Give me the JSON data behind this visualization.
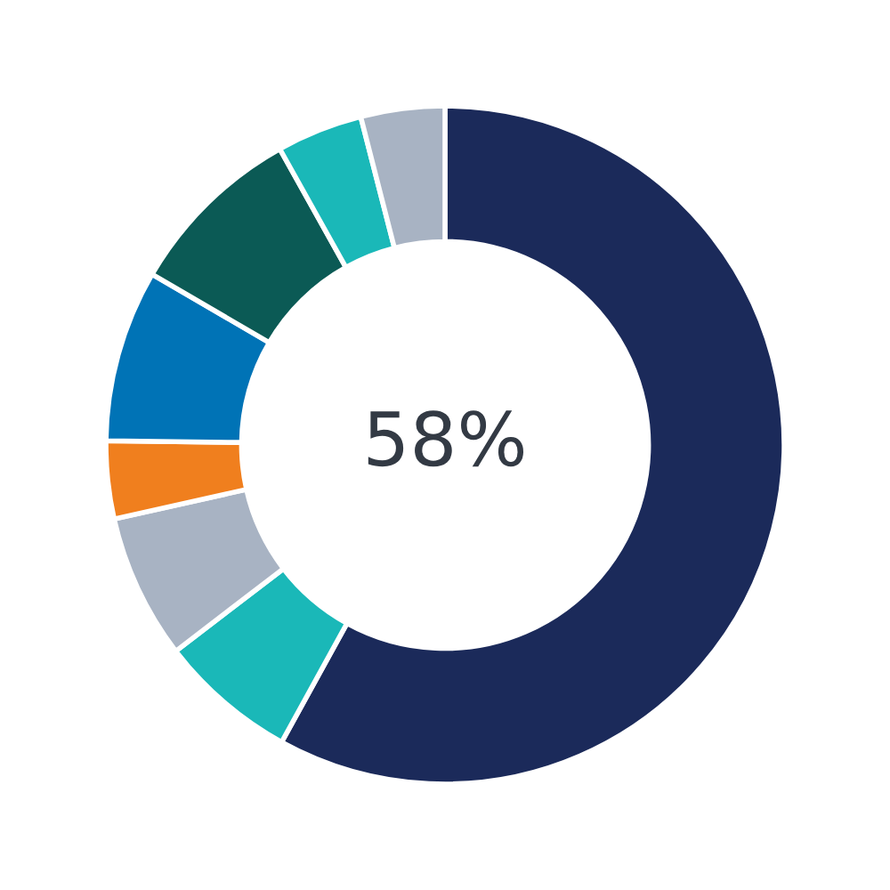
{
  "chart_data": {
    "type": "donut",
    "categories": [
      null,
      null,
      null,
      null,
      null,
      null,
      null,
      null
    ],
    "values": [
      58,
      6.6,
      6.9,
      3.7,
      8.2,
      8.5,
      4.1,
      4.0
    ],
    "colors": [
      "#1b2a5a",
      "#1ab8b8",
      "#a8b3c3",
      "#f07f1e",
      "#0073b6",
      "#0b5a55",
      "#1ab8b8",
      "#a8b3c3"
    ],
    "annotations": [
      "58%"
    ],
    "legend": false
  }
}
